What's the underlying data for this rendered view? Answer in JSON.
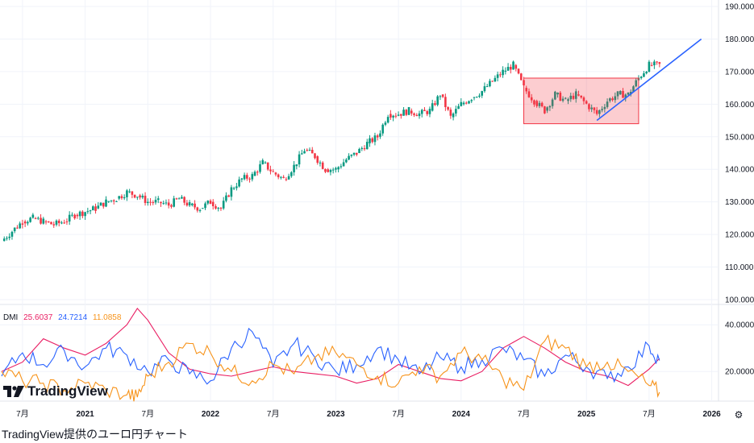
{
  "caption": "TradingView提供のユーロ円チャート",
  "logo_text": "TradingView",
  "colors": {
    "up": "#089981",
    "down": "#f23645",
    "plus_di": "#2962ff",
    "minus_di": "#f7931a",
    "adx": "#e91e63",
    "grid": "#f0f3fa",
    "trendline": "#2962ff",
    "box_fill": "rgba(242,54,69,0.25)",
    "box_stroke": "#f23645"
  },
  "icons": {
    "settings": "gear-icon",
    "logo": "tradingview-logo-icon"
  },
  "dmi_legend": {
    "name": "DMI",
    "adx": "25.6037",
    "plus_di": "24.7214",
    "minus_di": "11.0858"
  },
  "chart_data": [
    {
      "type": "candlestick",
      "title": "",
      "y_axis_ticks": [
        "190.000",
        "180.000",
        "170.000",
        "160.000",
        "150.000",
        "140.000",
        "130.000",
        "120.000",
        "110.000",
        "100.000"
      ],
      "ylim": [
        100,
        190
      ],
      "x_axis_ticks": [
        "7月",
        "2021",
        "7月",
        "2022",
        "7月",
        "2023",
        "7月",
        "2024",
        "7月",
        "2025",
        "7月",
        "2026"
      ],
      "monthly_close": [
        {
          "date": "2020-05",
          "close": 118
        },
        {
          "date": "2020-06",
          "close": 121
        },
        {
          "date": "2020-07",
          "close": 124
        },
        {
          "date": "2020-08",
          "close": 125
        },
        {
          "date": "2020-09",
          "close": 124
        },
        {
          "date": "2020-10",
          "close": 123
        },
        {
          "date": "2020-11",
          "close": 124
        },
        {
          "date": "2020-12",
          "close": 126
        },
        {
          "date": "2021-01",
          "close": 127
        },
        {
          "date": "2021-02",
          "close": 128
        },
        {
          "date": "2021-03",
          "close": 130
        },
        {
          "date": "2021-04",
          "close": 131
        },
        {
          "date": "2021-05",
          "close": 133
        },
        {
          "date": "2021-06",
          "close": 132
        },
        {
          "date": "2021-07",
          "close": 130
        },
        {
          "date": "2021-08",
          "close": 130
        },
        {
          "date": "2021-09",
          "close": 129
        },
        {
          "date": "2021-10",
          "close": 131
        },
        {
          "date": "2021-11",
          "close": 129
        },
        {
          "date": "2021-12",
          "close": 128
        },
        {
          "date": "2022-01",
          "close": 130
        },
        {
          "date": "2022-02",
          "close": 128
        },
        {
          "date": "2022-03",
          "close": 134
        },
        {
          "date": "2022-04",
          "close": 137
        },
        {
          "date": "2022-05",
          "close": 138
        },
        {
          "date": "2022-06",
          "close": 142
        },
        {
          "date": "2022-07",
          "close": 139
        },
        {
          "date": "2022-08",
          "close": 137
        },
        {
          "date": "2022-09",
          "close": 141
        },
        {
          "date": "2022-10",
          "close": 146
        },
        {
          "date": "2022-11",
          "close": 144
        },
        {
          "date": "2022-12",
          "close": 140
        },
        {
          "date": "2023-01",
          "close": 140
        },
        {
          "date": "2023-02",
          "close": 143
        },
        {
          "date": "2023-03",
          "close": 145
        },
        {
          "date": "2023-04",
          "close": 148
        },
        {
          "date": "2023-05",
          "close": 150
        },
        {
          "date": "2023-06",
          "close": 157
        },
        {
          "date": "2023-07",
          "close": 157
        },
        {
          "date": "2023-08",
          "close": 158
        },
        {
          "date": "2023-09",
          "close": 157
        },
        {
          "date": "2023-10",
          "close": 158
        },
        {
          "date": "2023-11",
          "close": 163
        },
        {
          "date": "2023-12",
          "close": 156
        },
        {
          "date": "2024-01",
          "close": 160
        },
        {
          "date": "2024-02",
          "close": 162
        },
        {
          "date": "2024-03",
          "close": 164
        },
        {
          "date": "2024-04",
          "close": 167
        },
        {
          "date": "2024-05",
          "close": 170
        },
        {
          "date": "2024-06",
          "close": 172
        },
        {
          "date": "2024-07",
          "close": 165
        },
        {
          "date": "2024-08",
          "close": 161
        },
        {
          "date": "2024-09",
          "close": 158
        },
        {
          "date": "2024-10",
          "close": 163
        },
        {
          "date": "2024-11",
          "close": 161
        },
        {
          "date": "2024-12",
          "close": 163
        },
        {
          "date": "2025-01",
          "close": 160
        },
        {
          "date": "2025-02",
          "close": 157
        },
        {
          "date": "2025-03",
          "close": 161
        },
        {
          "date": "2025-04",
          "close": 163
        },
        {
          "date": "2025-05",
          "close": 163
        },
        {
          "date": "2025-06",
          "close": 168
        },
        {
          "date": "2025-07",
          "close": 172
        },
        {
          "date": "2025-08",
          "close": 172
        }
      ],
      "annotations": [
        {
          "type": "rectangle",
          "from_date": "2024-07",
          "to_date": "2025-06",
          "y_low": 154,
          "y_high": 168
        },
        {
          "type": "trendline",
          "from_date": "2025-02",
          "from_y": 155,
          "to_date": "2025-12",
          "to_y": 180
        }
      ]
    },
    {
      "type": "line",
      "title": "",
      "y_axis_ticks": [
        "40.0000",
        "20.0000"
      ],
      "ylim": [
        8,
        48
      ],
      "series": [
        {
          "name": "adx",
          "values": [
            {
              "date": "2020-05",
              "v": 20
            },
            {
              "date": "2020-07",
              "v": 24
            },
            {
              "date": "2020-09",
              "v": 34
            },
            {
              "date": "2020-11",
              "v": 30
            },
            {
              "date": "2021-01",
              "v": 27
            },
            {
              "date": "2021-03",
              "v": 32
            },
            {
              "date": "2021-05",
              "v": 40
            },
            {
              "date": "2021-06",
              "v": 47
            },
            {
              "date": "2021-07",
              "v": 42
            },
            {
              "date": "2021-09",
              "v": 28
            },
            {
              "date": "2021-11",
              "v": 21
            },
            {
              "date": "2022-01",
              "v": 19
            },
            {
              "date": "2022-03",
              "v": 18
            },
            {
              "date": "2022-05",
              "v": 20
            },
            {
              "date": "2022-07",
              "v": 22
            },
            {
              "date": "2022-09",
              "v": 20
            },
            {
              "date": "2022-11",
              "v": 19
            },
            {
              "date": "2023-01",
              "v": 18
            },
            {
              "date": "2023-03",
              "v": 15
            },
            {
              "date": "2023-05",
              "v": 17
            },
            {
              "date": "2023-07",
              "v": 23
            },
            {
              "date": "2023-09",
              "v": 20
            },
            {
              "date": "2023-11",
              "v": 17
            },
            {
              "date": "2024-01",
              "v": 16
            },
            {
              "date": "2024-03",
              "v": 20
            },
            {
              "date": "2024-05",
              "v": 30
            },
            {
              "date": "2024-07",
              "v": 35
            },
            {
              "date": "2024-09",
              "v": 30
            },
            {
              "date": "2024-11",
              "v": 24
            },
            {
              "date": "2025-01",
              "v": 20
            },
            {
              "date": "2025-03",
              "v": 18
            },
            {
              "date": "2025-05",
              "v": 14
            },
            {
              "date": "2025-07",
              "v": 21
            },
            {
              "date": "2025-08",
              "v": 25.6
            }
          ]
        },
        {
          "name": "plus_di",
          "values": [
            {
              "date": "2020-05",
              "v": 18
            },
            {
              "date": "2020-07",
              "v": 28
            },
            {
              "date": "2020-09",
              "v": 23
            },
            {
              "date": "2020-11",
              "v": 29
            },
            {
              "date": "2021-01",
              "v": 22
            },
            {
              "date": "2021-03",
              "v": 30
            },
            {
              "date": "2021-05",
              "v": 27
            },
            {
              "date": "2021-07",
              "v": 20
            },
            {
              "date": "2021-09",
              "v": 25
            },
            {
              "date": "2021-11",
              "v": 19
            },
            {
              "date": "2022-01",
              "v": 16
            },
            {
              "date": "2022-03",
              "v": 30
            },
            {
              "date": "2022-05",
              "v": 37
            },
            {
              "date": "2022-07",
              "v": 22
            },
            {
              "date": "2022-09",
              "v": 32
            },
            {
              "date": "2022-11",
              "v": 26
            },
            {
              "date": "2023-01",
              "v": 20
            },
            {
              "date": "2023-03",
              "v": 23
            },
            {
              "date": "2023-05",
              "v": 30
            },
            {
              "date": "2023-07",
              "v": 25
            },
            {
              "date": "2023-09",
              "v": 19
            },
            {
              "date": "2023-11",
              "v": 26
            },
            {
              "date": "2024-01",
              "v": 22
            },
            {
              "date": "2024-03",
              "v": 25
            },
            {
              "date": "2024-05",
              "v": 30
            },
            {
              "date": "2024-07",
              "v": 25
            },
            {
              "date": "2024-09",
              "v": 18
            },
            {
              "date": "2024-11",
              "v": 27
            },
            {
              "date": "2025-01",
              "v": 22
            },
            {
              "date": "2025-03",
              "v": 17
            },
            {
              "date": "2025-05",
              "v": 22
            },
            {
              "date": "2025-07",
              "v": 31
            },
            {
              "date": "2025-08",
              "v": 24.7
            }
          ]
        },
        {
          "name": "minus_di",
          "values": [
            {
              "date": "2020-05",
              "v": 20
            },
            {
              "date": "2020-07",
              "v": 16
            },
            {
              "date": "2020-09",
              "v": 15
            },
            {
              "date": "2020-11",
              "v": 12
            },
            {
              "date": "2021-01",
              "v": 15
            },
            {
              "date": "2021-03",
              "v": 12
            },
            {
              "date": "2021-05",
              "v": 10
            },
            {
              "date": "2021-06",
              "v": 9
            },
            {
              "date": "2021-07",
              "v": 18
            },
            {
              "date": "2021-09",
              "v": 24
            },
            {
              "date": "2021-11",
              "v": 32
            },
            {
              "date": "2022-01",
              "v": 28
            },
            {
              "date": "2022-03",
              "v": 20
            },
            {
              "date": "2022-05",
              "v": 16
            },
            {
              "date": "2022-07",
              "v": 23
            },
            {
              "date": "2022-09",
              "v": 19
            },
            {
              "date": "2022-11",
              "v": 26
            },
            {
              "date": "2023-01",
              "v": 28
            },
            {
              "date": "2023-03",
              "v": 23
            },
            {
              "date": "2023-05",
              "v": 18
            },
            {
              "date": "2023-07",
              "v": 15
            },
            {
              "date": "2023-09",
              "v": 22
            },
            {
              "date": "2023-11",
              "v": 18
            },
            {
              "date": "2024-01",
              "v": 28
            },
            {
              "date": "2024-03",
              "v": 25
            },
            {
              "date": "2024-05",
              "v": 17
            },
            {
              "date": "2024-07",
              "v": 12
            },
            {
              "date": "2024-09",
              "v": 33
            },
            {
              "date": "2024-11",
              "v": 30
            },
            {
              "date": "2025-01",
              "v": 22
            },
            {
              "date": "2025-03",
              "v": 24
            },
            {
              "date": "2025-05",
              "v": 20
            },
            {
              "date": "2025-07",
              "v": 14
            },
            {
              "date": "2025-08",
              "v": 11.1
            }
          ]
        }
      ]
    }
  ]
}
